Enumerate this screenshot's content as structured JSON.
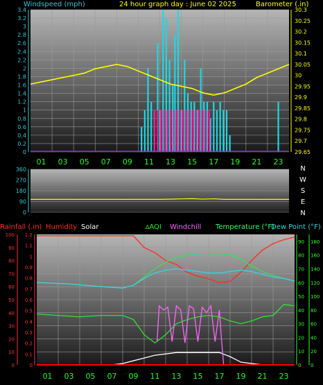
{
  "colors": {
    "background": "#000000",
    "plot_grid": "#9a9a9a",
    "windspeed": "#1fd7e3",
    "gust": "#ff1493",
    "barometer": "#ffff00",
    "direction": "#ffff00",
    "temperature": "#36e05a",
    "dewpoint": "#39d3e0",
    "humidity": "#ff2a1a",
    "rainfall": "#ff0000",
    "solar": "#ffffff",
    "aqi": "#2ee52e",
    "windchill": "#ff66ff",
    "hour_labels": "#22ff22",
    "left_axis_cyan": "#38c7d8",
    "left_axis_red": "#ff3333",
    "right_axis_yellow": "#ffff00",
    "right_axis_green": "#33ff33"
  },
  "chart_data": [
    {
      "id": "wind_baro",
      "type": "line",
      "title": "24 hour graph day : June 02 2025",
      "ylabel_left": "Windspeed (mph)",
      "ylabel_right": "Barometer (.in)",
      "xlim": [
        0,
        24
      ],
      "ylim_left": [
        0,
        3.4
      ],
      "ylim_right": [
        29.65,
        30.3
      ],
      "x_ticks": [
        "01",
        "03",
        "05",
        "07",
        "09",
        "11",
        "13",
        "15",
        "17",
        "19",
        "21",
        "23"
      ],
      "left_ticks": [
        "0",
        "0.2",
        "0.4",
        "0.6",
        "0.8",
        "1",
        "1.2",
        "1.4",
        "1.6",
        "1.8",
        "2",
        "2.2",
        "2.4",
        "2.6",
        "2.8",
        "3",
        "3.2",
        "3.4"
      ],
      "right_ticks": [
        "29.65",
        "29.7",
        "29.75",
        "29.8",
        "29.85",
        "29.9",
        "29.95",
        "30",
        "30.05",
        "30.1",
        "30.15",
        "30.2",
        "30.25",
        "30.3"
      ],
      "series": [
        {
          "name": "Barometer",
          "axis": "right",
          "x": [
            0,
            1,
            2,
            3,
            4,
            5,
            6,
            7,
            8,
            9,
            10,
            11,
            12,
            13,
            14,
            15,
            16,
            17,
            18,
            19,
            20,
            21,
            22,
            23,
            24
          ],
          "y": [
            29.96,
            29.97,
            29.98,
            29.99,
            30.0,
            30.01,
            30.03,
            30.04,
            30.05,
            30.04,
            30.02,
            30.0,
            29.98,
            29.96,
            29.95,
            29.94,
            29.92,
            29.91,
            29.92,
            29.94,
            29.96,
            29.99,
            30.01,
            30.03,
            30.05
          ]
        },
        {
          "name": "Windspeed",
          "axis": "left",
          "bars": [
            [
              10.3,
              0.6
            ],
            [
              10.6,
              1.0
            ],
            [
              10.9,
              2.0
            ],
            [
              11.2,
              1.2
            ],
            [
              11.5,
              1.0
            ],
            [
              11.8,
              2.6
            ],
            [
              12.0,
              1.0
            ],
            [
              12.3,
              3.4
            ],
            [
              12.6,
              3.2
            ],
            [
              12.9,
              2.2
            ],
            [
              13.2,
              1.6
            ],
            [
              13.4,
              2.8
            ],
            [
              13.7,
              3.4
            ],
            [
              14.0,
              1.0
            ],
            [
              14.3,
              2.2
            ],
            [
              14.6,
              1.4
            ],
            [
              14.9,
              1.2
            ],
            [
              15.2,
              1.2
            ],
            [
              15.5,
              1.0
            ],
            [
              15.8,
              2.0
            ],
            [
              16.1,
              1.2
            ],
            [
              16.4,
              1.2
            ],
            [
              16.7,
              0.8
            ],
            [
              17.0,
              1.2
            ],
            [
              17.3,
              1.0
            ],
            [
              17.6,
              1.2
            ],
            [
              17.9,
              1.0
            ],
            [
              18.2,
              1.0
            ],
            [
              18.5,
              0.4
            ],
            [
              23.0,
              1.2
            ]
          ]
        },
        {
          "name": "Gust",
          "axis": "left",
          "bars": [
            [
              11.5,
              1.0
            ],
            [
              11.8,
              1.0
            ],
            [
              12.1,
              1.0
            ],
            [
              12.4,
              1.0
            ],
            [
              12.7,
              1.0
            ],
            [
              13.0,
              1.0
            ],
            [
              13.3,
              1.0
            ],
            [
              13.6,
              1.0
            ],
            [
              13.9,
              1.0
            ],
            [
              14.2,
              1.0
            ],
            [
              14.5,
              1.0
            ],
            [
              14.8,
              1.0
            ],
            [
              15.1,
              1.0
            ],
            [
              15.4,
              1.0
            ],
            [
              15.7,
              1.0
            ],
            [
              16.0,
              1.0
            ],
            [
              16.3,
              1.0
            ],
            [
              16.6,
              1.0
            ]
          ]
        }
      ]
    },
    {
      "id": "wind_direction",
      "type": "line",
      "ylim": [
        0,
        360
      ],
      "left_ticks": [
        "0",
        "90",
        "180",
        "270",
        "360"
      ],
      "right_labels": [
        "N",
        "W",
        "S",
        "E",
        "N"
      ],
      "series": [
        {
          "name": "Direction",
          "x": [
            0,
            3,
            6,
            9,
            12,
            14,
            15,
            16,
            17,
            18,
            21,
            24
          ],
          "y": [
            108,
            108,
            108,
            108,
            108,
            112,
            114,
            110,
            113,
            108,
            108,
            108
          ]
        }
      ]
    },
    {
      "id": "temp_hum",
      "type": "line",
      "legend": [
        "Rainfall (.in)",
        "Humidity",
        "Solar",
        "AQI",
        "Windchill",
        "Temperature (°F)",
        "Dew Point (°F)"
      ],
      "left_ticks_humidity": [
        "0",
        "10",
        "20",
        "30",
        "40",
        "50",
        "60",
        "70",
        "80",
        "90",
        "100"
      ],
      "left_ticks_rain": [
        "0",
        "0.1",
        "0.2",
        "0.3",
        "0.4",
        "0.5",
        "0.6",
        "0.7",
        "0.8",
        "0.9",
        "1",
        "1.1",
        "1.2"
      ],
      "right_ticks_temp": [
        "0",
        "10",
        "20",
        "30",
        "40",
        "50",
        "60",
        "70",
        "80",
        "90"
      ],
      "right_ticks_solar": [
        "0",
        "20",
        "40",
        "60",
        "80",
        "100",
        "120",
        "140",
        "160",
        "180"
      ],
      "series": [
        {
          "name": "Humidity",
          "axis": "humidity",
          "x": [
            0,
            6,
            9,
            10,
            11,
            12,
            13,
            14,
            15,
            16,
            17,
            18,
            19,
            20,
            21,
            22,
            23,
            24
          ],
          "y": [
            99,
            99,
            99,
            90,
            86,
            80,
            77,
            71,
            68,
            66,
            63,
            64,
            71,
            80,
            88,
            93,
            96,
            98
          ]
        },
        {
          "name": "Temperature",
          "axis": "temp",
          "x": [
            0,
            3,
            6,
            8,
            9,
            10,
            11,
            12,
            13,
            14,
            15,
            16,
            17,
            18,
            19,
            20,
            21,
            22,
            23,
            24
          ],
          "y": [
            60,
            59,
            57,
            56,
            58,
            64,
            70,
            75,
            78,
            80,
            81,
            81,
            81,
            80,
            77,
            72,
            68,
            65,
            63,
            61
          ]
        },
        {
          "name": "Dew Point",
          "axis": "temp",
          "x": [
            0,
            3,
            6,
            8,
            9,
            10,
            11,
            12,
            13,
            14,
            15,
            16,
            17,
            18,
            19,
            20,
            21,
            22,
            23,
            24
          ],
          "y": [
            60,
            59,
            57,
            56,
            58,
            63,
            67,
            69,
            70,
            69,
            68,
            67,
            67,
            68,
            69,
            68,
            66,
            64,
            63,
            61
          ]
        },
        {
          "name": "Solar",
          "axis": "solar",
          "x": [
            0,
            7,
            8,
            9,
            10,
            11,
            12,
            13,
            14,
            15,
            16,
            17,
            18,
            19,
            20,
            21,
            24
          ],
          "y": [
            0,
            0,
            2,
            6,
            10,
            14,
            16,
            18,
            18,
            18,
            18,
            18,
            12,
            4,
            2,
            0,
            0
          ]
        },
        {
          "name": "AQI",
          "axis": "temp",
          "x": [
            0,
            2,
            4,
            6,
            8,
            9,
            10,
            11,
            12,
            13,
            14,
            15,
            16,
            17,
            18,
            19,
            20,
            21,
            22,
            23,
            24
          ],
          "y": [
            37,
            36,
            35,
            36,
            36,
            33,
            22,
            16,
            22,
            30,
            33,
            35,
            36,
            35,
            32,
            30,
            32,
            35,
            36,
            44,
            43
          ]
        },
        {
          "name": "Windchill",
          "axis": "temp",
          "x": [
            11.2,
            11.4,
            11.8,
            12.2,
            12.6,
            13.0,
            13.4,
            13.8,
            14.2,
            14.6,
            15.0,
            15.4,
            15.8,
            16.2,
            16.6,
            17.0,
            17.2,
            17.4
          ],
          "y": [
            17,
            43,
            40,
            42,
            17,
            43,
            40,
            16,
            43,
            41,
            17,
            42,
            38,
            43,
            17,
            40,
            18,
            0
          ]
        },
        {
          "name": "Rainfall",
          "axis": "rain",
          "x": [
            0,
            24
          ],
          "y": [
            0,
            0
          ]
        }
      ]
    }
  ]
}
